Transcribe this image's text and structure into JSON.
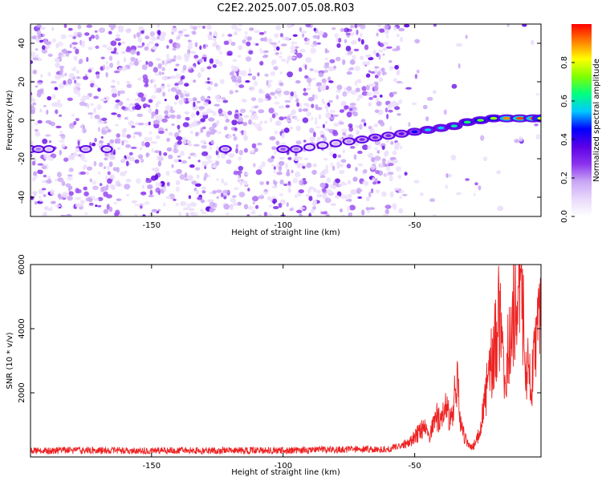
{
  "figure": {
    "title": "C2E2.2025.007.05.08.R03"
  },
  "chart_data": [
    {
      "type": "heatmap",
      "title": "C2E2.2025.007.05.08.R03",
      "xlabel": "Height of straight line (km)",
      "ylabel": "Frequency (Hz)",
      "xlim": [
        -196,
        -2
      ],
      "ylim": [
        -50,
        50
      ],
      "xticks": [
        -150,
        -100,
        -50
      ],
      "yticks": [
        -40,
        -20,
        0,
        20,
        40
      ],
      "colorbar": {
        "label": "Normalized spectral amplitude",
        "range": [
          0,
          1
        ],
        "ticks": [
          0.0,
          0.2,
          0.4,
          0.6,
          0.8
        ],
        "colormap": [
          "#ffffff",
          "#e8d9fb",
          "#c9a6f5",
          "#8b33ee",
          "#5b00e6",
          "#0000ff",
          "#00c8ff",
          "#00ff80",
          "#80ff00",
          "#ffff00",
          "#ff8000",
          "#ff0000"
        ]
      },
      "ridge": [
        {
          "x": -196,
          "y": -15,
          "a": 0.05
        },
        {
          "x": -193,
          "y": -15,
          "a": 0.22
        },
        {
          "x": -189,
          "y": -15,
          "a": 0.12
        },
        {
          "x": -175,
          "y": -15,
          "a": 0.18
        },
        {
          "x": -167,
          "y": -15,
          "a": 0.12
        },
        {
          "x": -122,
          "y": -15,
          "a": 0.2
        },
        {
          "x": -100,
          "y": -15,
          "a": 0.25
        },
        {
          "x": -95,
          "y": -15,
          "a": 0.22
        },
        {
          "x": -90,
          "y": -14,
          "a": 0.1
        },
        {
          "x": -85,
          "y": -13,
          "a": 0.12
        },
        {
          "x": -80,
          "y": -12,
          "a": 0.15
        },
        {
          "x": -75,
          "y": -11,
          "a": 0.2
        },
        {
          "x": -70,
          "y": -10,
          "a": 0.3
        },
        {
          "x": -65,
          "y": -9,
          "a": 0.32
        },
        {
          "x": -60,
          "y": -8,
          "a": 0.3
        },
        {
          "x": -55,
          "y": -7,
          "a": 0.35
        },
        {
          "x": -50,
          "y": -6,
          "a": 0.45
        },
        {
          "x": -45,
          "y": -5,
          "a": 0.55
        },
        {
          "x": -40,
          "y": -4,
          "a": 0.55
        },
        {
          "x": -35,
          "y": -3,
          "a": 0.6
        },
        {
          "x": -30,
          "y": -1,
          "a": 0.65
        },
        {
          "x": -25,
          "y": 0,
          "a": 0.7
        },
        {
          "x": -20,
          "y": 1,
          "a": 0.75
        },
        {
          "x": -15,
          "y": 1,
          "a": 0.9
        },
        {
          "x": -10,
          "y": 1,
          "a": 0.95
        },
        {
          "x": -5,
          "y": 1,
          "a": 0.92
        },
        {
          "x": -2,
          "y": 1,
          "a": 0.8
        }
      ]
    },
    {
      "type": "line",
      "xlabel": "Height of straight line (km)",
      "ylabel": "SNR (10 * v/v)",
      "xlim": [
        -196,
        -2
      ],
      "ylim": [
        0,
        6000
      ],
      "xticks": [
        -150,
        -100,
        -50
      ],
      "yticks": [
        2000,
        4000,
        6000
      ],
      "color": "#ee2222",
      "baseline": 200,
      "series": [
        {
          "x": [
            -196,
            -150,
            -100,
            -60,
            -55,
            -52,
            -50,
            -48,
            -46,
            -44,
            -42,
            -40,
            -38,
            -36,
            -34,
            -32,
            -30,
            -28,
            -26,
            -24,
            -22,
            -20,
            -18,
            -16,
            -14,
            -12,
            -10,
            -8,
            -6,
            -4,
            -2
          ],
          "y": [
            200,
            200,
            200,
            250,
            350,
            450,
            600,
            800,
            900,
            700,
            1300,
            1000,
            1600,
            1100,
            2400,
            800,
            400,
            300,
            600,
            1300,
            2600,
            3200,
            4500,
            2500,
            3600,
            5000,
            6000,
            3200,
            2200,
            3300,
            4200
          ]
        }
      ]
    }
  ]
}
